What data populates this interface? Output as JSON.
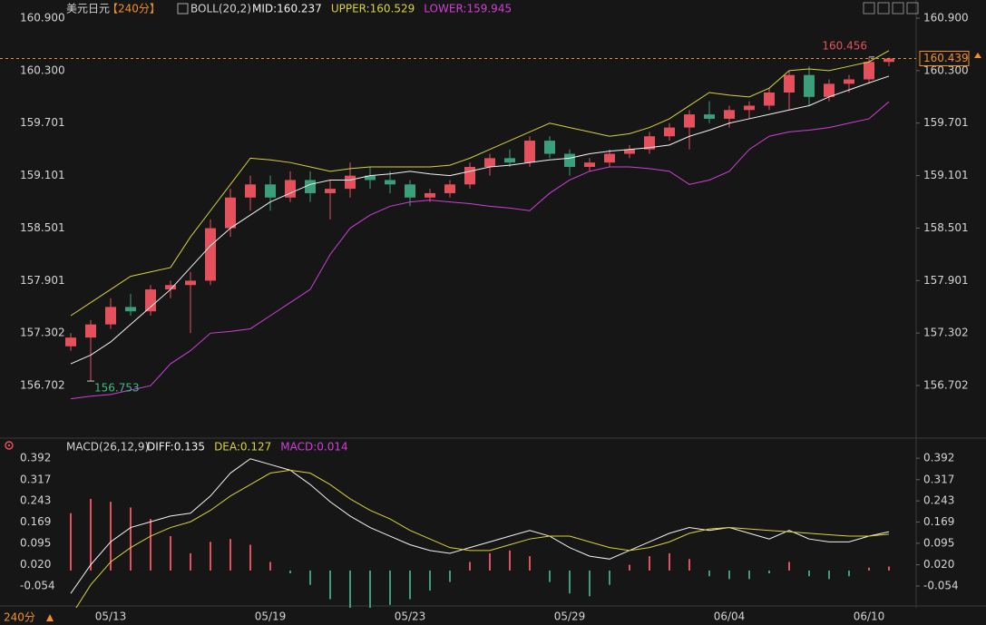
{
  "chart_data": [
    {
      "type": "candlestick",
      "title": "美元日元",
      "period": "【240分】",
      "indicator": "BOLL(20,2)",
      "categories": [
        null,
        null,
        "05/13",
        null,
        null,
        null,
        null,
        null,
        null,
        null,
        "05/19",
        null,
        null,
        null,
        null,
        null,
        null,
        "05/23",
        null,
        null,
        null,
        null,
        null,
        null,
        null,
        "05/29",
        null,
        null,
        null,
        null,
        null,
        null,
        null,
        "06/04",
        null,
        null,
        null,
        null,
        null,
        null,
        "06/10",
        null
      ],
      "open": [
        157.15,
        157.25,
        157.4,
        157.6,
        157.55,
        157.8,
        157.85,
        157.9,
        158.5,
        158.85,
        159.0,
        158.85,
        159.05,
        158.9,
        158.95,
        159.1,
        159.05,
        159.0,
        158.85,
        158.9,
        159.0,
        159.2,
        159.3,
        159.25,
        159.5,
        159.35,
        159.2,
        159.25,
        159.35,
        159.4,
        159.55,
        159.65,
        159.8,
        159.75,
        159.85,
        159.9,
        160.05,
        160.25,
        160.0,
        160.15,
        160.2,
        160.4
      ],
      "high": [
        157.3,
        157.45,
        157.7,
        157.75,
        157.85,
        157.9,
        158.0,
        158.6,
        158.95,
        159.1,
        159.1,
        159.15,
        159.15,
        159.05,
        159.25,
        159.2,
        159.15,
        159.05,
        158.95,
        159.05,
        159.25,
        159.35,
        159.4,
        159.55,
        159.55,
        159.4,
        159.3,
        159.4,
        159.45,
        159.6,
        159.7,
        159.85,
        159.95,
        159.9,
        159.95,
        160.1,
        160.3,
        160.35,
        160.2,
        160.25,
        160.456,
        160.45
      ],
      "low": [
        157.1,
        156.753,
        157.35,
        157.5,
        157.5,
        157.7,
        157.3,
        157.85,
        158.4,
        158.7,
        158.7,
        158.8,
        158.8,
        158.6,
        158.85,
        158.95,
        158.9,
        158.75,
        158.8,
        158.85,
        158.95,
        159.1,
        159.2,
        159.2,
        159.3,
        159.1,
        159.15,
        159.2,
        159.3,
        159.35,
        159.5,
        159.4,
        159.7,
        159.65,
        159.75,
        159.85,
        159.85,
        159.9,
        159.95,
        160.05,
        160.15,
        160.35
      ],
      "close": [
        157.25,
        157.4,
        157.6,
        157.55,
        157.8,
        157.85,
        157.9,
        158.5,
        158.85,
        159.0,
        158.85,
        159.05,
        158.9,
        158.95,
        159.1,
        159.05,
        159.0,
        158.85,
        158.9,
        159.0,
        159.2,
        159.3,
        159.25,
        159.5,
        159.35,
        159.2,
        159.25,
        159.35,
        159.4,
        159.55,
        159.65,
        159.8,
        159.75,
        159.85,
        159.9,
        160.05,
        160.25,
        160.0,
        160.15,
        160.2,
        160.4,
        160.439
      ],
      "up_color": "#e5505d",
      "down_color": "#3c9f7b",
      "price_line_color": "#f0902a",
      "series": [
        {
          "name": "MID:160.237",
          "color": "#f2f2f2",
          "values": [
            156.95,
            157.05,
            157.2,
            157.4,
            157.6,
            157.8,
            158.05,
            158.3,
            158.5,
            158.65,
            158.8,
            158.9,
            159.0,
            159.05,
            159.05,
            159.1,
            159.12,
            159.15,
            159.12,
            159.1,
            159.15,
            159.2,
            159.22,
            159.25,
            159.28,
            159.3,
            159.35,
            159.38,
            159.4,
            159.42,
            159.45,
            159.55,
            159.62,
            159.7,
            159.75,
            159.8,
            159.85,
            159.9,
            160.0,
            160.08,
            160.16,
            160.237
          ]
        },
        {
          "name": "UPPER:160.529",
          "color": "#d8d23a",
          "values": [
            157.5,
            157.65,
            157.8,
            157.95,
            158.0,
            158.05,
            158.4,
            158.7,
            159.0,
            159.3,
            159.28,
            159.25,
            159.2,
            159.15,
            159.18,
            159.2,
            159.2,
            159.2,
            159.2,
            159.22,
            159.3,
            159.4,
            159.5,
            159.6,
            159.7,
            159.65,
            159.6,
            159.55,
            159.58,
            159.65,
            159.75,
            159.9,
            160.05,
            160.02,
            160.0,
            160.1,
            160.3,
            160.32,
            160.3,
            160.35,
            160.4,
            160.529
          ]
        },
        {
          "name": "LOWER:159.945",
          "color": "#d13fd8",
          "values": [
            156.55,
            156.58,
            156.6,
            156.65,
            156.7,
            156.95,
            157.1,
            157.3,
            157.32,
            157.35,
            157.5,
            157.65,
            157.8,
            158.2,
            158.5,
            158.65,
            158.75,
            158.8,
            158.82,
            158.8,
            158.78,
            158.75,
            158.73,
            158.7,
            158.9,
            159.05,
            159.15,
            159.2,
            159.2,
            159.18,
            159.15,
            159.0,
            159.05,
            159.15,
            159.4,
            159.55,
            159.6,
            159.62,
            159.65,
            159.7,
            159.75,
            159.945
          ]
        }
      ],
      "ylim": [
        156.08,
        160.9
      ],
      "yticks": [
        {
          "value": 160.9,
          "label": "160.900"
        },
        {
          "value": 160.3,
          "label": "160.300"
        },
        159.701,
        159.101,
        158.501,
        157.901,
        157.302,
        156.702
      ]
    },
    {
      "type": "macd",
      "title": "MACD(26,12,9)",
      "period_footer": "240分",
      "up_color": "#e5505d",
      "down_color": "#3c9f7b",
      "series": [
        {
          "name": "DIFF:0.135",
          "color": "#f2f2f2",
          "values": [
            -0.08,
            0.02,
            0.1,
            0.15,
            0.17,
            0.19,
            0.2,
            0.26,
            0.34,
            0.39,
            0.37,
            0.35,
            0.3,
            0.24,
            0.19,
            0.15,
            0.12,
            0.09,
            0.07,
            0.06,
            0.08,
            0.1,
            0.12,
            0.14,
            0.12,
            0.08,
            0.05,
            0.04,
            0.07,
            0.1,
            0.13,
            0.15,
            0.14,
            0.15,
            0.13,
            0.11,
            0.14,
            0.11,
            0.1,
            0.1,
            0.12,
            0.135
          ]
        },
        {
          "name": "DEA:0.127",
          "color": "#d8d23a",
          "values": [
            -0.16,
            -0.05,
            0.03,
            0.08,
            0.12,
            0.15,
            0.17,
            0.21,
            0.26,
            0.3,
            0.34,
            0.35,
            0.34,
            0.3,
            0.25,
            0.21,
            0.18,
            0.14,
            0.11,
            0.08,
            0.07,
            0.07,
            0.09,
            0.11,
            0.12,
            0.12,
            0.1,
            0.08,
            0.07,
            0.08,
            0.1,
            0.13,
            0.145,
            0.15,
            0.145,
            0.14,
            0.135,
            0.13,
            0.125,
            0.12,
            0.12,
            0.127
          ]
        },
        {
          "name": "MACD:0.014",
          "color": "#d13fd8",
          "values": [
            0.2,
            0.25,
            0.24,
            0.22,
            0.18,
            0.12,
            0.06,
            0.1,
            0.11,
            0.09,
            0.03,
            -0.01,
            -0.05,
            -0.1,
            -0.13,
            -0.14,
            -0.12,
            -0.1,
            -0.07,
            -0.04,
            0.03,
            0.06,
            0.07,
            0.05,
            -0.04,
            -0.08,
            -0.09,
            -0.05,
            0.02,
            0.05,
            0.06,
            0.04,
            -0.02,
            -0.03,
            -0.03,
            -0.01,
            0.03,
            -0.02,
            -0.03,
            -0.02,
            0.01,
            0.014
          ]
        }
      ],
      "ylim": [
        -0.13,
        0.424
      ],
      "yticks": [
        0.392,
        0.317,
        0.243,
        0.169,
        0.095,
        {
          "value": 0.02,
          "label": "0.020"
        },
        -0.054
      ]
    }
  ]
}
